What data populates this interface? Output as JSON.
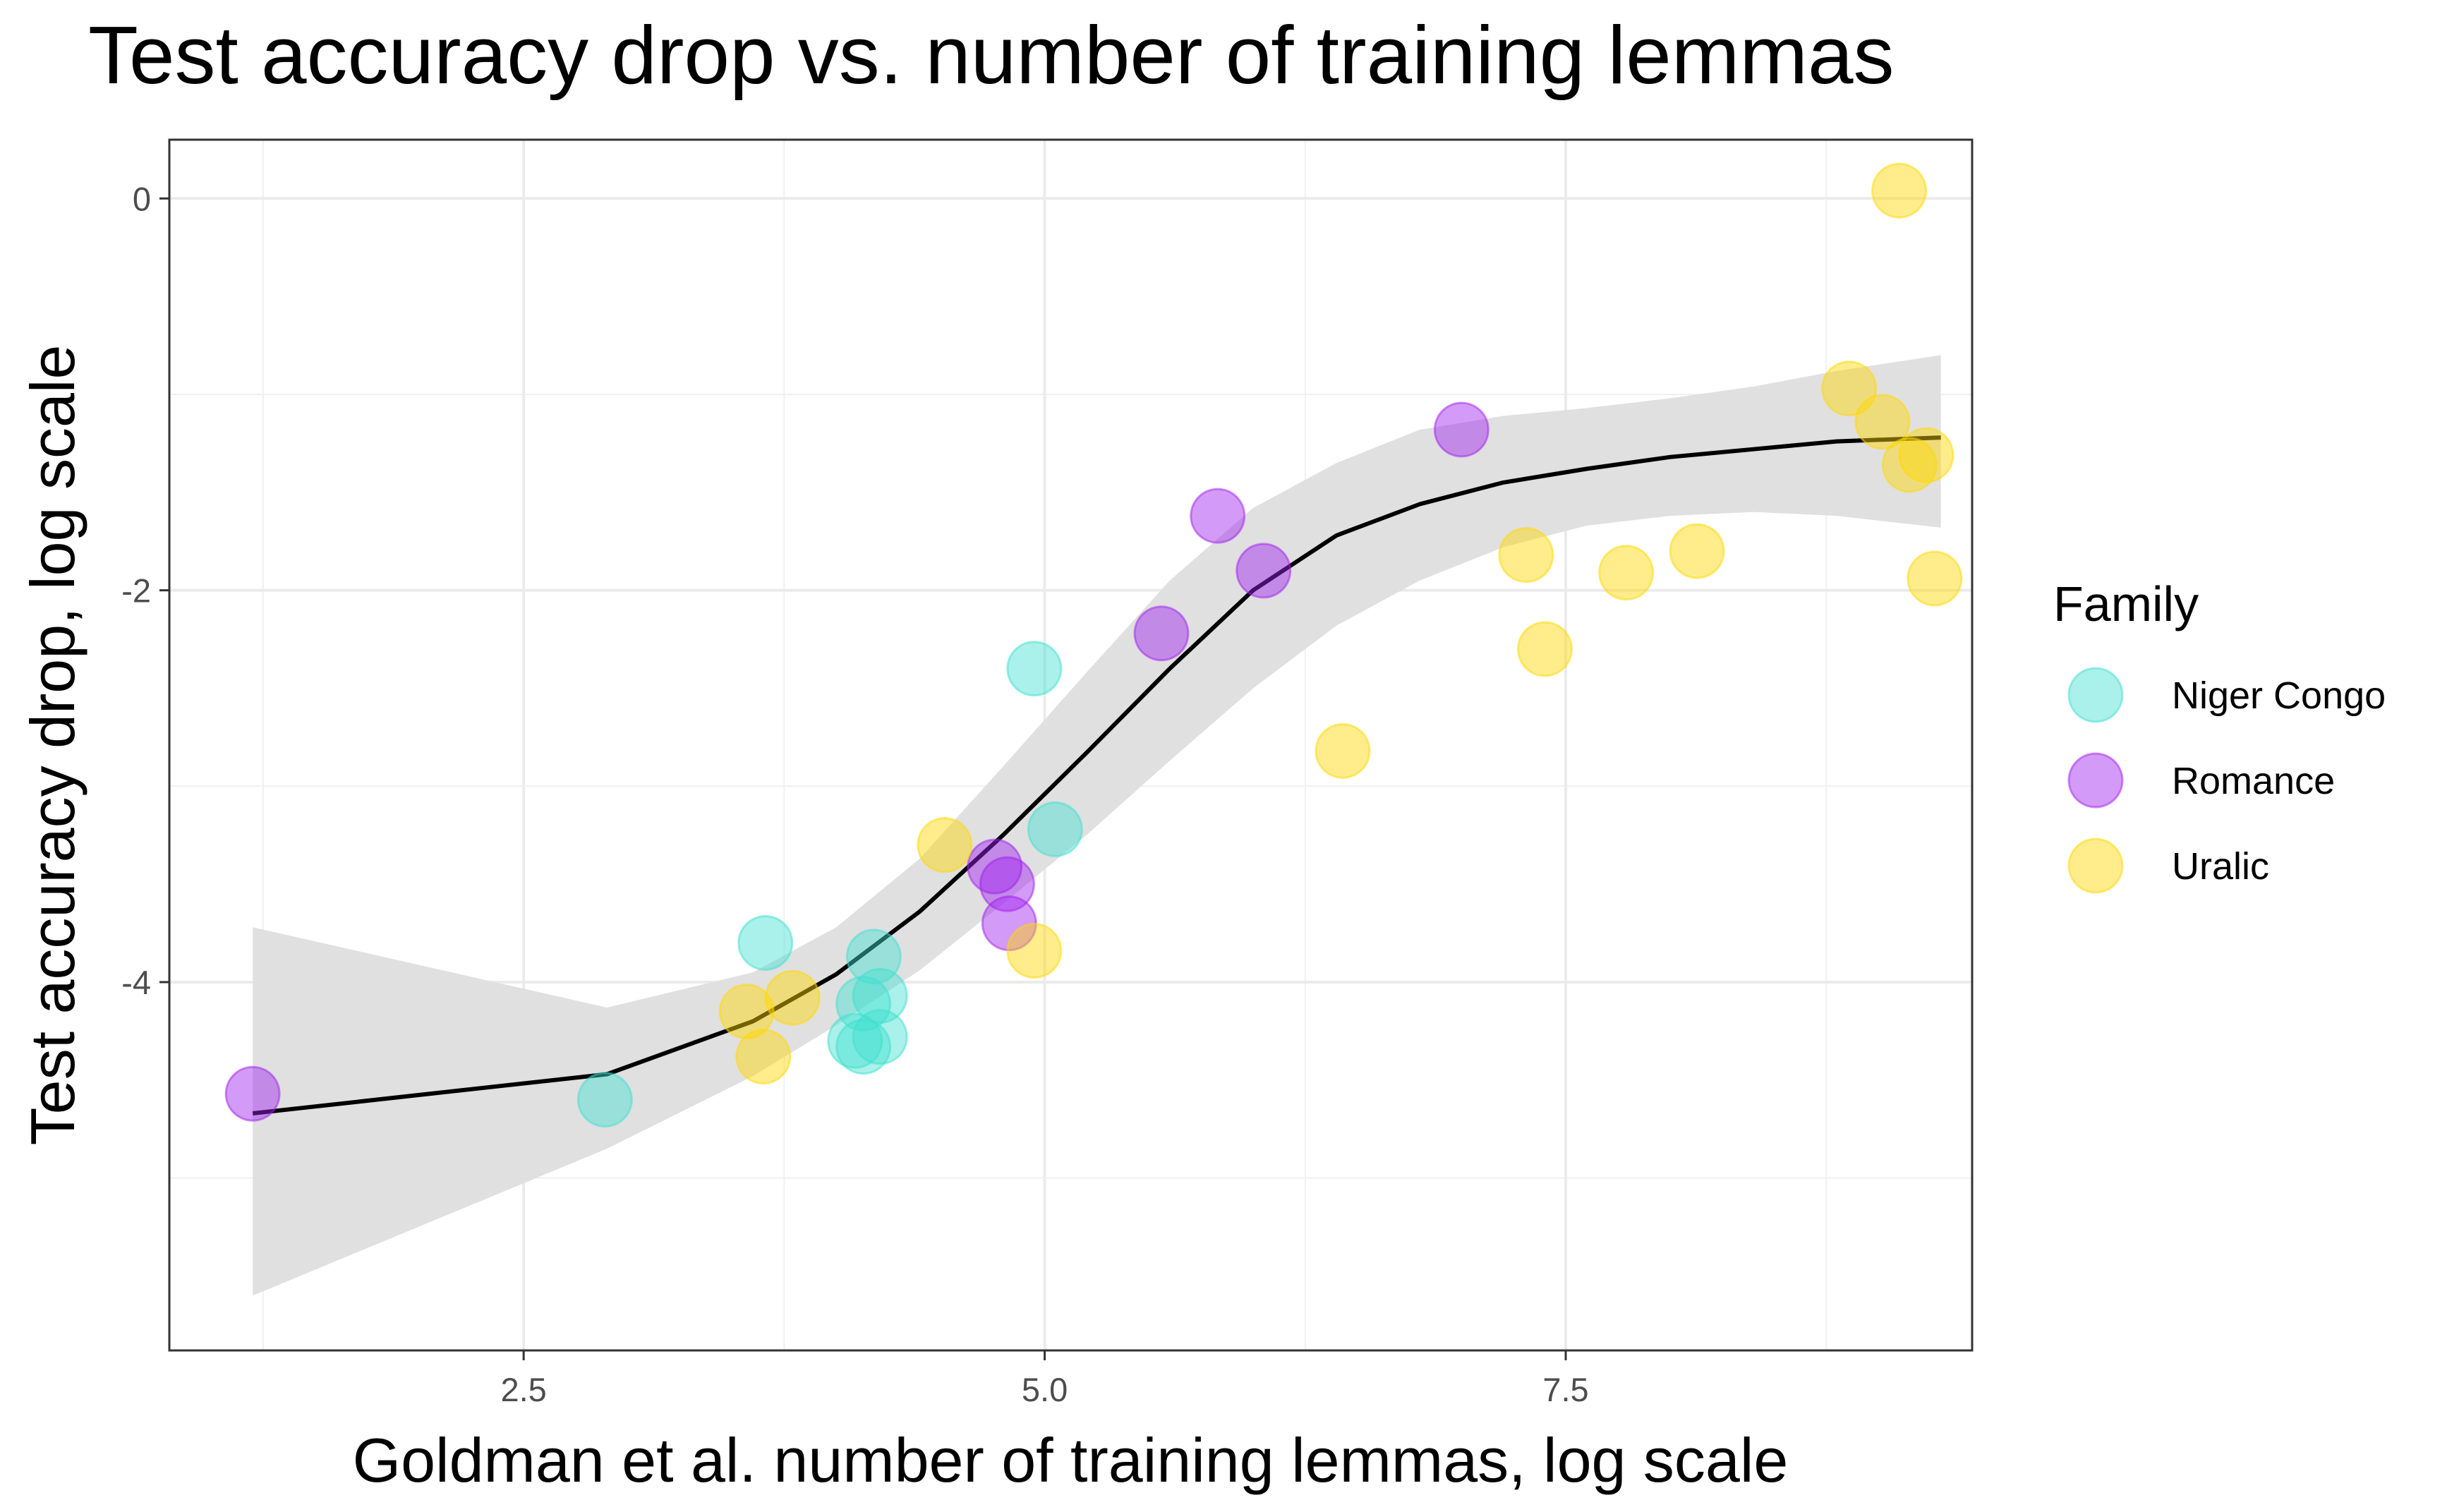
{
  "chart_data": {
    "type": "scatter",
    "title": "Test accuracy drop vs. number of training lemmas",
    "xlabel": "Goldman et al. number of training lemmas, log scale",
    "ylabel": "Test accuracy drop, log scale",
    "xlim": [
      0.8,
      9.45
    ],
    "ylim": [
      -5.88,
      0.3
    ],
    "x_ticks": [
      2.5,
      5.0,
      7.5
    ],
    "x_tick_labels": [
      "2.5",
      "5.0",
      "7.5"
    ],
    "y_ticks": [
      0,
      -2,
      -4
    ],
    "y_tick_labels": [
      "0",
      "-2",
      "-4"
    ],
    "grid": true,
    "legend": {
      "title": "Family",
      "position": "right",
      "entries": [
        {
          "label": "Niger Congo",
          "color": "#40E0D0"
        },
        {
          "label": "Romance",
          "color": "#A020F0"
        },
        {
          "label": "Uralic",
          "color": "#FFD700"
        }
      ]
    },
    "series": [
      {
        "name": "Niger Congo",
        "color": "#40E0D0",
        "points": [
          [
            2.89,
            -4.6
          ],
          [
            3.66,
            -3.8
          ],
          [
            4.18,
            -3.87
          ],
          [
            4.13,
            -4.11
          ],
          [
            4.21,
            -4.07
          ],
          [
            4.09,
            -4.3
          ],
          [
            4.13,
            -4.33
          ],
          [
            4.21,
            -4.28
          ],
          [
            4.95,
            -2.4
          ],
          [
            5.05,
            -3.22
          ]
        ]
      },
      {
        "name": "Romance",
        "color": "#A020F0",
        "points": [
          [
            1.2,
            -4.57
          ],
          [
            4.76,
            -3.41
          ],
          [
            4.82,
            -3.5
          ],
          [
            4.83,
            -3.7
          ],
          [
            5.56,
            -2.22
          ],
          [
            5.83,
            -1.62
          ],
          [
            6.05,
            -1.9
          ],
          [
            7.0,
            -1.18
          ]
        ]
      },
      {
        "name": "Uralic",
        "color": "#FFD700",
        "points": [
          [
            3.57,
            -4.15
          ],
          [
            3.79,
            -4.08
          ],
          [
            3.65,
            -4.38
          ],
          [
            4.52,
            -3.3
          ],
          [
            4.95,
            -3.84
          ],
          [
            6.43,
            -2.82
          ],
          [
            7.31,
            -1.82
          ],
          [
            7.4,
            -2.3
          ],
          [
            7.79,
            -1.91
          ],
          [
            8.13,
            -1.8
          ],
          [
            8.86,
            -0.97
          ],
          [
            9.02,
            -1.14
          ],
          [
            9.1,
            0.04
          ],
          [
            9.15,
            -1.36
          ],
          [
            9.23,
            -1.31
          ],
          [
            9.27,
            -1.94
          ]
        ]
      }
    ],
    "smooth": {
      "color": "#000000",
      "band_color": "#e0e0e0",
      "x": [
        1.2,
        2.9,
        3.6,
        4.0,
        4.4,
        4.8,
        5.2,
        5.6,
        6.0,
        6.4,
        6.8,
        7.2,
        7.6,
        8.0,
        8.4,
        8.8,
        9.3
      ],
      "y": [
        -4.67,
        -4.47,
        -4.2,
        -3.96,
        -3.64,
        -3.25,
        -2.83,
        -2.4,
        -2.0,
        -1.72,
        -1.56,
        -1.45,
        -1.38,
        -1.32,
        -1.28,
        -1.24,
        -1.22
      ],
      "lower": [
        -5.6,
        -4.85,
        -4.48,
        -4.22,
        -3.94,
        -3.6,
        -3.25,
        -2.87,
        -2.5,
        -2.18,
        -1.95,
        -1.78,
        -1.67,
        -1.62,
        -1.6,
        -1.62,
        -1.68
      ],
      "upper": [
        -3.72,
        -4.13,
        -3.95,
        -3.72,
        -3.37,
        -2.9,
        -2.42,
        -1.95,
        -1.58,
        -1.35,
        -1.18,
        -1.11,
        -1.07,
        -1.02,
        -0.96,
        -0.88,
        -0.8
      ]
    }
  }
}
